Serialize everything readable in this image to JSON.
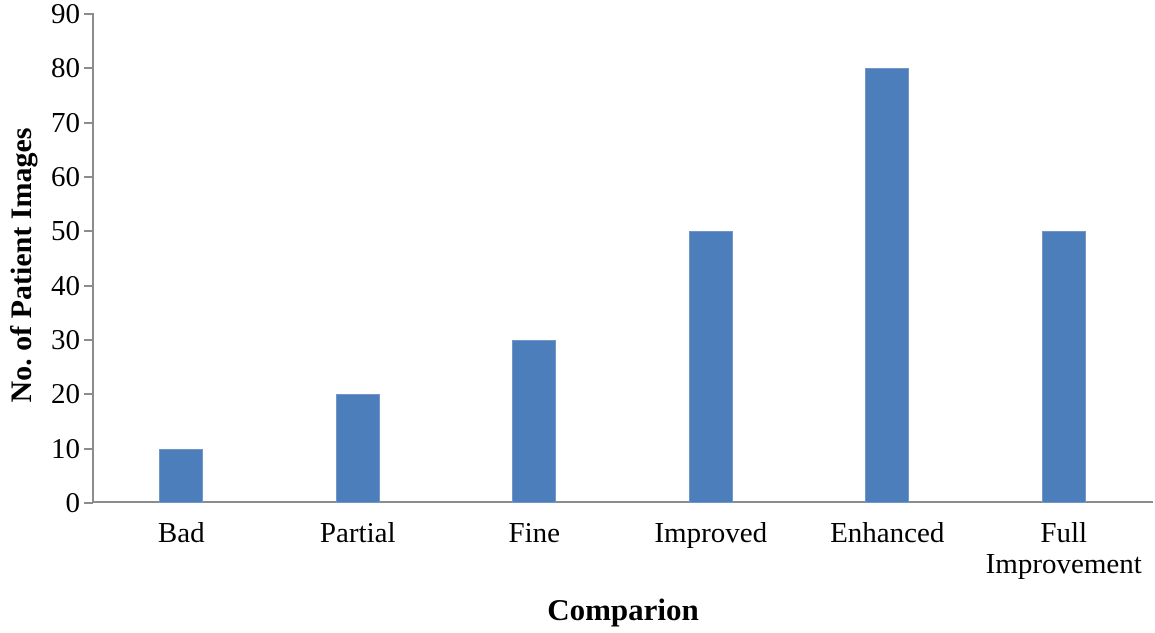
{
  "chart_data": {
    "type": "bar",
    "title": "",
    "xlabel": "Comparion",
    "ylabel": "No. of Patient Images",
    "categories": [
      "Bad",
      "Partial",
      "Fine",
      "Improved",
      "Enhanced",
      "Full Improvement"
    ],
    "values": [
      10,
      20,
      30,
      50,
      80,
      50
    ],
    "ylim": [
      0,
      90
    ],
    "y_ticks": [
      0,
      10,
      20,
      30,
      40,
      50,
      60,
      70,
      80,
      90
    ],
    "grid": "off",
    "legend": "none",
    "bar_fill_color": "#4C7EBB",
    "bar_edge_color": "#7396C8",
    "axis_color": "#8C8C8C",
    "text_color": "#000000"
  }
}
